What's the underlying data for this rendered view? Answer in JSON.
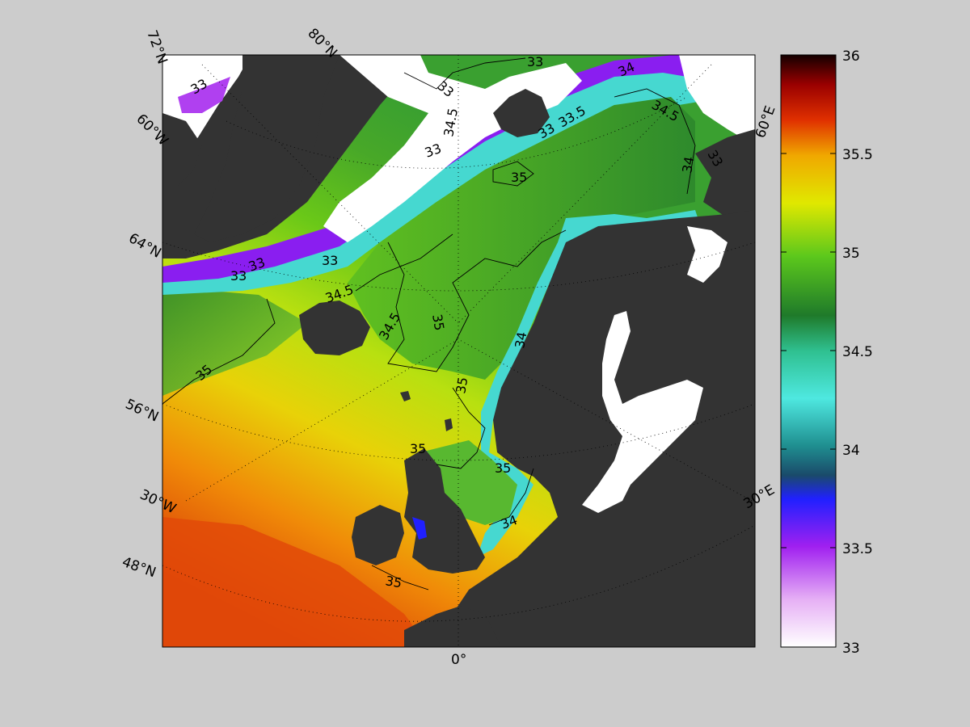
{
  "map": {
    "meridian_labels": [
      "72°N",
      "80°N",
      "60°W",
      "64°N",
      "56°N",
      "30°W",
      "48°N",
      "0°",
      "30°E",
      "60°E"
    ],
    "contour_labels": [
      "33",
      "33",
      "33",
      "33",
      "33",
      "33",
      "33",
      "33",
      "33",
      "33.5",
      "34",
      "34",
      "34",
      "34",
      "34.5",
      "34.5",
      "34.5",
      "34.5",
      "35",
      "35",
      "35",
      "35",
      "35",
      "35",
      "35"
    ]
  },
  "colorbar": {
    "ticks": [
      "36",
      "35.5",
      "35",
      "34.5",
      "34",
      "33.5",
      "33"
    ],
    "range": [
      33,
      36
    ]
  },
  "colors": {
    "figure_background": "#cccccc",
    "land": "#333333",
    "ice": "#ffffff",
    "graticule": "#000000"
  }
}
